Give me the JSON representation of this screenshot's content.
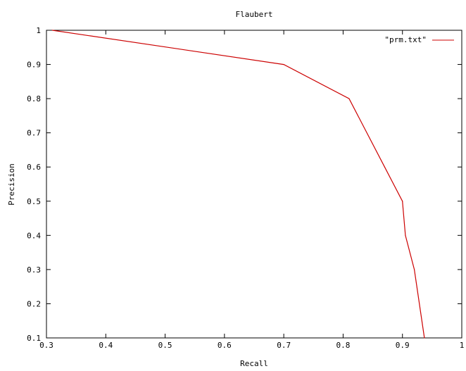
{
  "chart_data": {
    "type": "line",
    "title": "Flaubert",
    "xlabel": "Recall",
    "ylabel": "Precision",
    "xlim": [
      0.3,
      1
    ],
    "ylim": [
      0.1,
      1
    ],
    "x_ticks": [
      "0.3",
      "0.4",
      "0.5",
      "0.6",
      "0.7",
      "0.8",
      "0.9",
      "1"
    ],
    "y_ticks": [
      "0.1",
      "0.2",
      "0.3",
      "0.4",
      "0.5",
      "0.6",
      "0.7",
      "0.8",
      "0.9",
      "1"
    ],
    "grid": false,
    "legend_position": "top-right",
    "series": [
      {
        "name": "\"prm.txt\"",
        "color": "#cc0000",
        "x": [
          0.31,
          0.7,
          0.81,
          0.87,
          0.9,
          0.905,
          0.92,
          0.937
        ],
        "y": [
          1.0,
          0.9,
          0.8,
          0.6,
          0.5,
          0.4,
          0.3,
          0.1
        ]
      }
    ]
  }
}
